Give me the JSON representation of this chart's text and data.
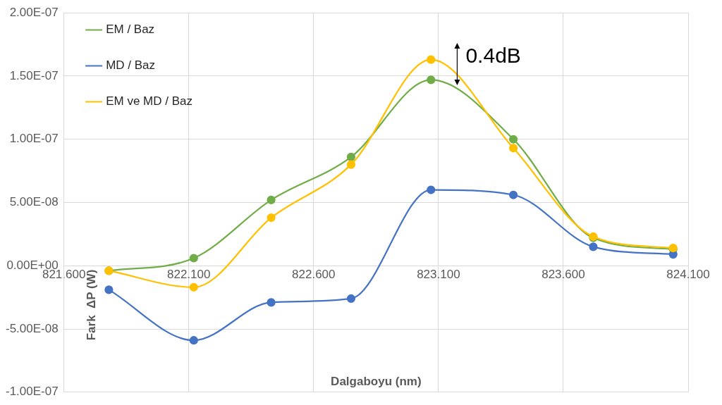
{
  "chart_data": {
    "type": "line",
    "xlabel": "Dalgaboyu (nm)",
    "ylabel": "Fark  ΔP (W)",
    "x": [
      821.78,
      822.12,
      822.43,
      822.75,
      823.07,
      823.4,
      823.72,
      824.04
    ],
    "series": [
      {
        "name": "EM / Baz",
        "color": "#70ad47",
        "values": [
          -4e-09,
          6e-09,
          5.2e-08,
          8.6e-08,
          1.47e-07,
          1e-07,
          2.2e-08,
          1.3e-08
        ]
      },
      {
        "name": "MD / Baz",
        "color": "#4472c4",
        "values": [
          -1.9e-08,
          -5.9e-08,
          -2.9e-08,
          -2.6e-08,
          6e-08,
          5.6e-08,
          1.5e-08,
          9e-09
        ]
      },
      {
        "name": "EM ve MD / Baz",
        "color": "#ffc000",
        "values": [
          -4e-09,
          -1.7e-08,
          3.8e-08,
          8e-08,
          1.63e-07,
          9.3e-08,
          2.3e-08,
          1.4e-08
        ]
      }
    ],
    "xlim": [
      821.6,
      824.1
    ],
    "xticks": [
      {
        "value": 821.6,
        "label": "821.600"
      },
      {
        "value": 822.1,
        "label": "822.100"
      },
      {
        "value": 822.6,
        "label": "822.600"
      },
      {
        "value": 823.1,
        "label": "823.100"
      },
      {
        "value": 823.6,
        "label": "823.600"
      },
      {
        "value": 824.1,
        "label": "824.100"
      }
    ],
    "ylim": [
      -1e-07,
      2e-07
    ],
    "yticks": [
      {
        "value": -1e-07,
        "label": "-1.00E-07"
      },
      {
        "value": -5e-08,
        "label": "-5.00E-08"
      },
      {
        "value": 0,
        "label": "0.00E+00"
      },
      {
        "value": 5e-08,
        "label": "5.00E-08"
      },
      {
        "value": 1e-07,
        "label": "1.00E-07"
      },
      {
        "value": 1.5e-07,
        "label": "1.50E-07"
      },
      {
        "value": 2e-07,
        "label": "2.00E-07"
      }
    ],
    "annotations": [
      "0.4dB"
    ],
    "grid": true,
    "legend": "top left",
    "marker": "circle",
    "line_style": "solid"
  }
}
